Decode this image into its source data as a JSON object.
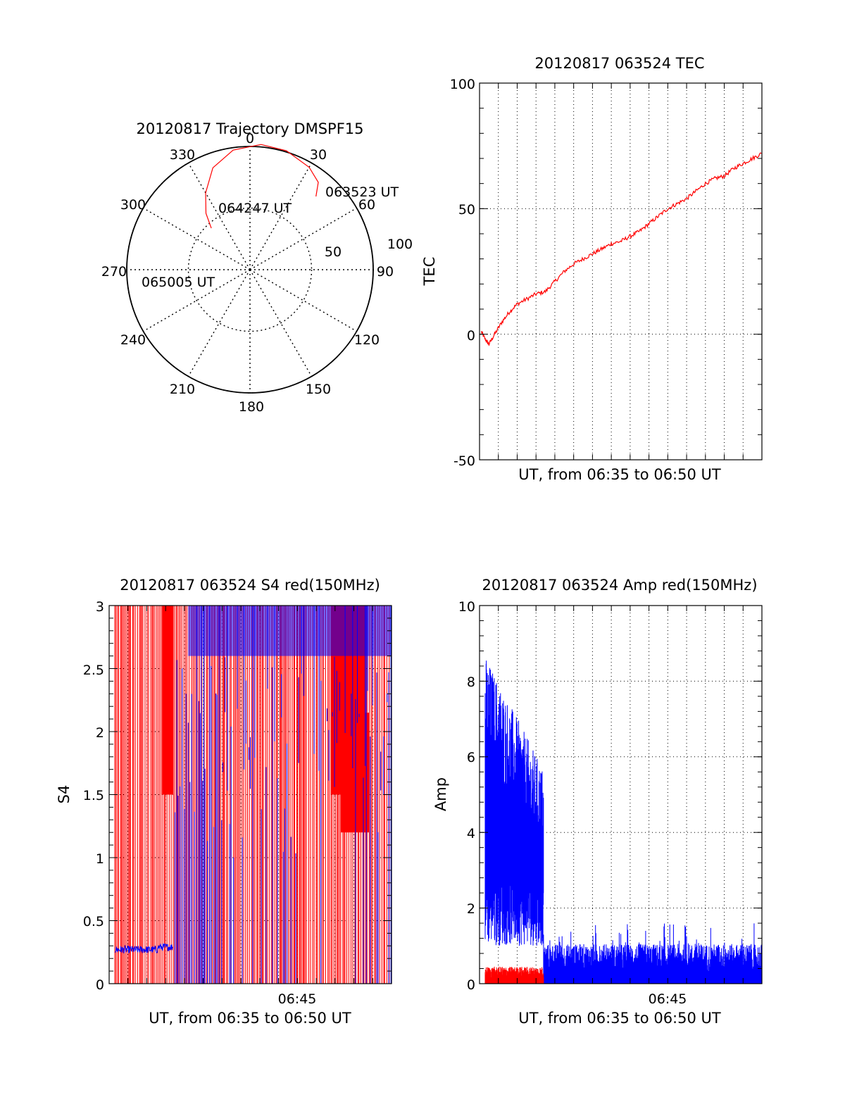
{
  "colors": {
    "red": "#ff0000",
    "blue": "#0000ff",
    "axis": "#000000",
    "grid": "#000000"
  },
  "chart_data": [
    {
      "id": "trajectory",
      "type": "polar",
      "title": "20120817 Trajectory DMSPF15",
      "azimuth_labels": [
        "0",
        "30",
        "60",
        "90",
        "120",
        "150",
        "180",
        "210",
        "240",
        "270",
        "300",
        "330"
      ],
      "radial_labels": [
        "50",
        "100"
      ],
      "rlim": [
        0,
        100
      ],
      "grid": true,
      "series": [
        {
          "color": "red",
          "points": [
            [
              62,
              88
            ],
            [
              55,
              60
            ],
            [
              38,
              45
            ],
            [
              20,
              40
            ],
            [
              0,
              0
            ],
            [
              -5,
              30
            ],
            [
              -16,
              48
            ],
            [
              -25,
              54
            ],
            [
              -31,
              58
            ],
            [
              -38,
              60
            ]
          ]
        }
      ],
      "annotations": [
        {
          "text": "063523 UT",
          "az": 62,
          "r": 88
        },
        {
          "text": "064247 UT",
          "az": 20,
          "r": 40
        },
        {
          "text": "065005 UT",
          "az": -38,
          "r": 60
        }
      ],
      "trajectory_line": [
        [
          42,
          80
        ],
        [
          38,
          90
        ],
        [
          30,
          96
        ],
        [
          17,
          101
        ],
        [
          5,
          102
        ],
        [
          -8,
          98
        ],
        [
          -20,
          88
        ],
        [
          -30,
          72
        ],
        [
          -38,
          58
        ],
        [
          -43,
          46
        ]
      ]
    },
    {
      "id": "tec",
      "type": "line",
      "title": "20120817 063524 TEC",
      "xlabel": "UT, from 06:35 to 06:50 UT",
      "ylabel": "TEC",
      "xlim": [
        0,
        15
      ],
      "ylim": [
        -50,
        100
      ],
      "yticks": [
        -50,
        0,
        50,
        100
      ],
      "grid": true,
      "series": [
        {
          "color": "red",
          "x": [
            0.1,
            0.3,
            0.5,
            0.8,
            1.2,
            1.6,
            2.0,
            2.5,
            3.0,
            3.5,
            4.0,
            4.5,
            5.0,
            5.5,
            6.0,
            6.5,
            7.0,
            7.5,
            8.0,
            8.5,
            9.0,
            9.5,
            10.0,
            10.5,
            11.0,
            11.5,
            12.0,
            12.5,
            13.0,
            13.5,
            14.0,
            14.5,
            15.0
          ],
          "y": [
            1,
            -2,
            -4,
            0,
            5,
            9,
            12,
            14,
            16,
            17,
            21,
            25,
            28,
            30,
            32,
            34,
            36,
            37,
            39,
            41,
            44,
            47,
            50,
            52,
            54,
            57,
            60,
            62,
            63,
            66,
            68,
            70,
            72
          ]
        }
      ]
    },
    {
      "id": "s4",
      "type": "line",
      "title": "20120817 063524 S4 red(150MHz)",
      "xlabel": "UT, from 06:35 to 06:50 UT",
      "ylabel": "S4",
      "xlim": [
        0,
        15
      ],
      "ylim": [
        0,
        3
      ],
      "yticks": [
        "0",
        "0.5",
        "1",
        "1.5",
        "2",
        "2.5",
        "3"
      ],
      "xticks": [
        {
          "x": 10,
          "label": "06:45"
        }
      ],
      "grid": true,
      "series": [
        {
          "color": "red",
          "name": "",
          "x_range": [
            0.3,
            15
          ],
          "y_range": [
            0,
            3
          ]
        },
        {
          "color": "blue",
          "name": "",
          "x_range": [
            0.3,
            3.4
          ],
          "y_level": 0.27
        }
      ]
    },
    {
      "id": "amp",
      "type": "line",
      "title": "20120817 063524 Amp red(150MHz)",
      "xlabel": "UT, from 06:35 to 06:50 UT",
      "ylabel": "Amp",
      "xlim": [
        0,
        15
      ],
      "ylim": [
        0,
        10
      ],
      "yticks": [
        "0",
        "2",
        "4",
        "6",
        "8",
        "10"
      ],
      "xticks": [
        {
          "x": 10,
          "label": "06:45"
        }
      ],
      "grid": true,
      "series": [
        {
          "color": "blue",
          "x_range": [
            0.3,
            3.4
          ],
          "y_range": [
            1.0,
            8.8
          ]
        },
        {
          "color": "blue",
          "x_range": [
            3.4,
            15
          ],
          "y_range": [
            0,
            1.6
          ]
        },
        {
          "color": "red",
          "x_range": [
            0.3,
            3.4
          ],
          "y_range": [
            0,
            0.5
          ]
        }
      ]
    }
  ]
}
